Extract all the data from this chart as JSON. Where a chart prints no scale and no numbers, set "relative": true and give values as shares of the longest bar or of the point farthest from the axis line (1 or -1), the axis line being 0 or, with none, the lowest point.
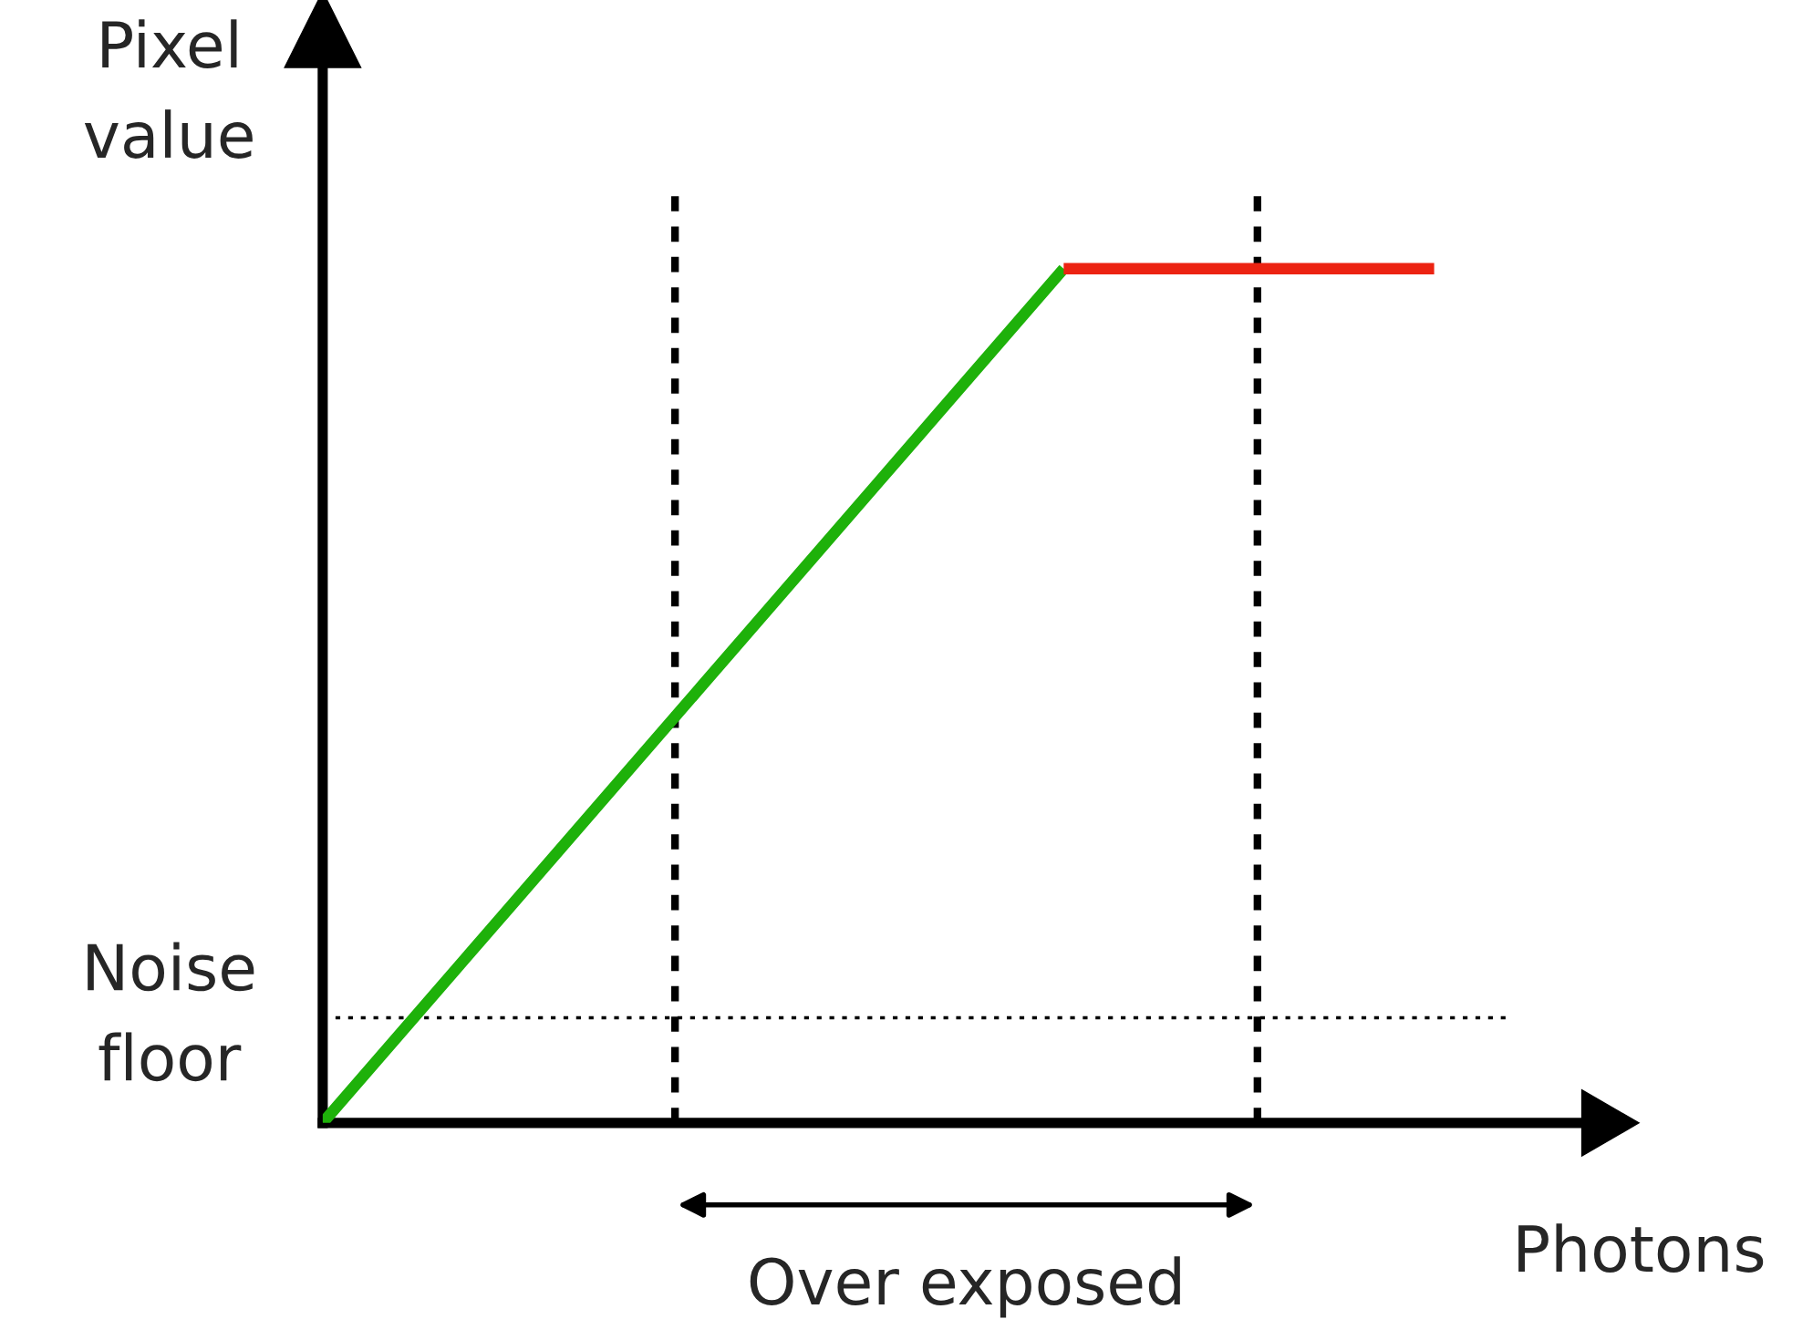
{
  "chart_data": {
    "type": "line",
    "relative": true,
    "xlabel": "Photons",
    "ylabel": "Pixel value",
    "categories": [
      null,
      null,
      null,
      null,
      null,
      null,
      null
    ],
    "series": [
      {
        "color": "#1eb10a",
        "values": [
          0,
          0.25,
          0.5,
          0.75,
          1,
          null,
          null
        ]
      },
      {
        "color": "#ec2312",
        "values": [
          null,
          null,
          null,
          null,
          1,
          1,
          1
        ]
      }
    ],
    "ref_lines": [
      {
        "axis": "y",
        "value": 0.123,
        "label": "Noise floor",
        "color": "#000000",
        "line_style": "dotted"
      }
    ],
    "annotations": [
      "Over exposed"
    ],
    "marker": "none",
    "line_style": "solid"
  }
}
